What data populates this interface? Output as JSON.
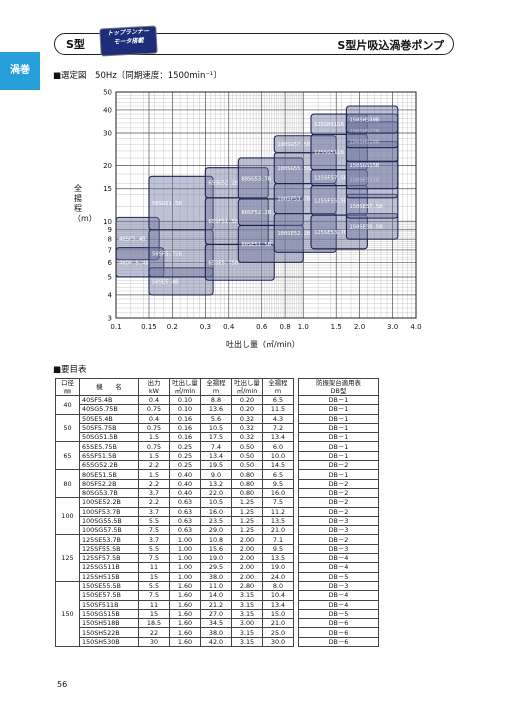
{
  "header": {
    "model_tag": "S型",
    "badge_line1": "トップランナー",
    "badge_line2": "モータ搭載",
    "title": "S型片吸込渦巻ポンプ"
  },
  "side_tab": "渦巻",
  "selection_label": "■選定図　50Hz〔同期速度：1500min⁻¹〕",
  "chart_data": {
    "type": "area",
    "xscale": "log",
    "yscale": "log",
    "xlim": [
      0.1,
      4.0
    ],
    "ylim": [
      3,
      50
    ],
    "xlabel": "吐出し量（㎥/min）",
    "ylabel": "全揚程（m）",
    "xticks": [
      0.1,
      0.15,
      0.2,
      0.3,
      0.4,
      0.6,
      0.8,
      1.0,
      1.5,
      2.0,
      3.0,
      4.0
    ],
    "xtick_labels": [
      "0.1",
      "0.15",
      "0.2",
      "0.3",
      "0.4",
      "0.6",
      "0.8",
      "1.0",
      "1.5",
      "2.0",
      "3.0",
      "4.0"
    ],
    "yticks": [
      3,
      4,
      5,
      6,
      7,
      8,
      9,
      10,
      15,
      20,
      30,
      40,
      50
    ],
    "ytick_labels": [
      "3",
      "4",
      "5",
      "6",
      "7",
      "8",
      "9",
      "10",
      "15",
      "20",
      "30",
      "40",
      "50"
    ],
    "grid": true,
    "regions": [
      {
        "label": "40SF5.4B",
        "q": [
          0.1,
          0.17
        ],
        "h": [
          6.2,
          10.5
        ]
      },
      {
        "label": "40DF 5.4B",
        "q": [
          0.1,
          0.18
        ],
        "h": [
          5.0,
          7.2
        ]
      },
      {
        "label": "50SE5.4B",
        "q": [
          0.15,
          0.33
        ],
        "h": [
          4.0,
          5.6
        ]
      },
      {
        "label": "50SF5.75B",
        "q": [
          0.15,
          0.33
        ],
        "h": [
          5.0,
          9.0
        ]
      },
      {
        "label": "50SG51.5B",
        "q": [
          0.15,
          0.33
        ],
        "h": [
          9.0,
          17.5
        ]
      },
      {
        "label": "65SE5.75B",
        "q": [
          0.3,
          0.7
        ],
        "h": [
          4.8,
          7.5
        ]
      },
      {
        "label": "65SF51.5B",
        "q": [
          0.3,
          0.65
        ],
        "h": [
          7.5,
          13.4
        ]
      },
      {
        "label": "65SG52.2B",
        "q": [
          0.3,
          0.65
        ],
        "h": [
          13.4,
          19.5
        ]
      },
      {
        "label": "80SE51.5B",
        "q": [
          0.45,
          1.0
        ],
        "h": [
          6.0,
          9.5
        ]
      },
      {
        "label": "80SF52.2B",
        "q": [
          0.45,
          1.0
        ],
        "h": [
          9.5,
          13.2
        ]
      },
      {
        "label": "80SG53.7B",
        "q": [
          0.45,
          1.0
        ],
        "h": [
          13.2,
          22.0
        ]
      },
      {
        "label": "100SE52.2B",
        "q": [
          0.7,
          1.5
        ],
        "h": [
          6.8,
          11.0
        ]
      },
      {
        "label": "100SF53.7B",
        "q": [
          0.7,
          1.5
        ],
        "h": [
          11.0,
          16.0
        ]
      },
      {
        "label": "100SG55.5B",
        "q": [
          0.7,
          1.5
        ],
        "h": [
          16.0,
          23.5
        ]
      },
      {
        "label": "100SG57.5B",
        "q": [
          0.7,
          1.5
        ],
        "h": [
          23.5,
          29.0
        ]
      },
      {
        "label": "125SE53.7B",
        "q": [
          1.1,
          2.2
        ],
        "h": [
          7.1,
          10.8
        ]
      },
      {
        "label": "125SF55.5B",
        "q": [
          1.1,
          2.2
        ],
        "h": [
          10.8,
          15.6
        ]
      },
      {
        "label": "125SF57.5B",
        "q": [
          1.1,
          2.2
        ],
        "h": [
          15.6,
          19.0
        ]
      },
      {
        "label": "125SG511B",
        "q": [
          1.1,
          2.2
        ],
        "h": [
          19.0,
          29.5
        ]
      },
      {
        "label": "125SH515B",
        "q": [
          1.1,
          2.2
        ],
        "h": [
          29.5,
          38.0
        ]
      },
      {
        "label": "150SE55.5B",
        "q": [
          1.7,
          3.2
        ],
        "h": [
          8.0,
          11.0
        ]
      },
      {
        "label": "150SE57.5B",
        "q": [
          1.7,
          3.2
        ],
        "h": [
          10.4,
          14.0
        ]
      },
      {
        "label": "150SF511B",
        "q": [
          1.7,
          3.2
        ],
        "h": [
          13.4,
          21.2
        ]
      },
      {
        "label": "150SG515B",
        "q": [
          1.7,
          3.2
        ],
        "h": [
          15.0,
          27.0
        ]
      },
      {
        "label": "150SH518B",
        "q": [
          1.7,
          3.2
        ],
        "h": [
          21.0,
          34.5
        ]
      },
      {
        "label": "150SH522B",
        "q": [
          1.7,
          3.2
        ],
        "h": [
          25.0,
          38.0
        ]
      },
      {
        "label": "150SH530B",
        "q": [
          1.7,
          3.2
        ],
        "h": [
          30.0,
          42.0
        ]
      }
    ]
  },
  "spec_heading": "■要目表",
  "table": {
    "headers": {
      "dia": "口径",
      "dia_unit": "㎜",
      "model": "機　　名",
      "power": "出力",
      "power_unit": "kW",
      "flow1": "吐出し量",
      "flow1_unit": "㎥/min",
      "head1": "全揚程",
      "head1_unit": "m",
      "flow2": "吐出し量",
      "flow2_unit": "㎥/min",
      "head2": "全揚程",
      "head2_unit": "m",
      "frame": "防振架台適用表",
      "frame_unit": "DB型"
    },
    "groups": [
      {
        "dia": "40",
        "rows": [
          [
            "40SF5.4B",
            "0.4",
            "0.10",
            "8.8",
            "0.20",
            "6.5",
            "DB－1"
          ],
          [
            "40SG5.75B",
            "0.75",
            "0.10",
            "13.6",
            "0.20",
            "11.5",
            "DB－1"
          ]
        ]
      },
      {
        "dia": "50",
        "rows": [
          [
            "50SE5.4B",
            "0.4",
            "0.16",
            "5.6",
            "0.32",
            "4.3",
            "DB－1"
          ],
          [
            "50SF5.75B",
            "0.75",
            "0.16",
            "10.5",
            "0.32",
            "7.2",
            "DB－1"
          ],
          [
            "50SG51.5B",
            "1.5",
            "0.16",
            "17.5",
            "0.32",
            "13.4",
            "DB－1"
          ]
        ]
      },
      {
        "dia": "65",
        "rows": [
          [
            "65SE5.75B",
            "0.75",
            "0.25",
            "7.4",
            "0.50",
            "6.0",
            "DB－1"
          ],
          [
            "65SF51.5B",
            "1.5",
            "0.25",
            "13.4",
            "0.50",
            "10.0",
            "DB－1"
          ],
          [
            "65SG52.2B",
            "2.2",
            "0.25",
            "19.5",
            "0.50",
            "14.5",
            "DB－2"
          ]
        ]
      },
      {
        "dia": "80",
        "rows": [
          [
            "80SE51.5B",
            "1.5",
            "0.40",
            "9.0",
            "0.80",
            "6.5",
            "DB－1"
          ],
          [
            "80SF52.2B",
            "2.2",
            "0.40",
            "13.2",
            "0.80",
            "9.5",
            "DB－2"
          ],
          [
            "80SG53.7B",
            "3.7",
            "0.40",
            "22.0",
            "0.80",
            "16.0",
            "DB－2"
          ]
        ]
      },
      {
        "dia": "100",
        "rows": [
          [
            "100SE52.2B",
            "2.2",
            "0.63",
            "10.5",
            "1.25",
            "7.5",
            "DB－2"
          ],
          [
            "100SF53.7B",
            "3.7",
            "0.63",
            "16.0",
            "1.25",
            "11.2",
            "DB－2"
          ],
          [
            "100SG55.5B",
            "5.5",
            "0.63",
            "23.5",
            "1.25",
            "13.5",
            "DB－3"
          ],
          [
            "100SG57.5B",
            "7.5",
            "0.63",
            "29.0",
            "1.25",
            "21.0",
            "DB－3"
          ]
        ]
      },
      {
        "dia": "125",
        "rows": [
          [
            "125SE53.7B",
            "3.7",
            "1.00",
            "10.8",
            "2.00",
            "7.1",
            "DB－2"
          ],
          [
            "125SF55.5B",
            "5.5",
            "1.00",
            "15.6",
            "2.00",
            "9.5",
            "DB－3"
          ],
          [
            "125SF57.5B",
            "7.5",
            "1.00",
            "19.0",
            "2.00",
            "13.5",
            "DB－4"
          ],
          [
            "125SG511B",
            "11",
            "1.00",
            "29.5",
            "2.00",
            "19.0",
            "DB－4"
          ],
          [
            "125SH515B",
            "15",
            "1.00",
            "38.0",
            "2.00",
            "24.0",
            "DB－5"
          ]
        ]
      },
      {
        "dia": "150",
        "rows": [
          [
            "150SE55.5B",
            "5.5",
            "1.60",
            "11.0",
            "2.80",
            "8.0",
            "DB－3"
          ],
          [
            "150SE57.5B",
            "7.5",
            "1.60",
            "14.0",
            "3.15",
            "10.4",
            "DB－4"
          ],
          [
            "150SF511B",
            "11",
            "1.60",
            "21.2",
            "3.15",
            "13.4",
            "DB－4"
          ],
          [
            "150SG515B",
            "15",
            "1.60",
            "27.0",
            "3.15",
            "15.0",
            "DB－5"
          ],
          [
            "150SH518B",
            "18.5",
            "1.60",
            "34.5",
            "3.00",
            "21.0",
            "DB－6"
          ],
          [
            "150SH522B",
            "22",
            "1.60",
            "38.0",
            "3.15",
            "25.0",
            "DB－6"
          ],
          [
            "150SH530B",
            "30",
            "1.60",
            "42.0",
            "3.15",
            "30.0",
            "DB－6"
          ]
        ]
      }
    ]
  },
  "page_number": "56"
}
